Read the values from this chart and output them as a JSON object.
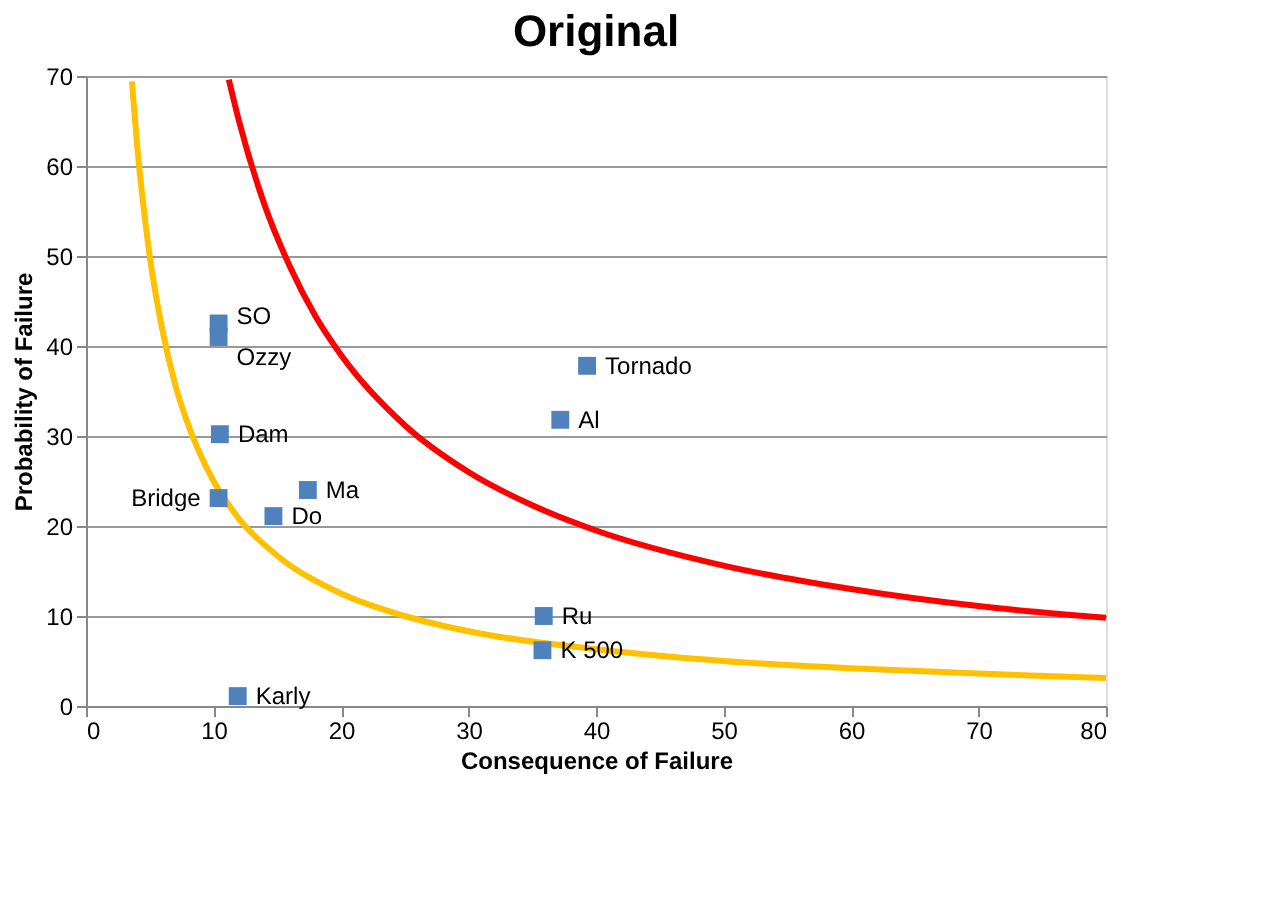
{
  "chart_data": {
    "type": "scatter",
    "title": "Original",
    "xlabel": "Consequence of Failure",
    "ylabel": "Probability of Failure",
    "xlim": [
      0,
      80
    ],
    "ylim": [
      0,
      70
    ],
    "xticks": [
      0,
      10,
      20,
      30,
      40,
      50,
      60,
      70,
      80
    ],
    "yticks": [
      0,
      10,
      20,
      30,
      40,
      50,
      60,
      70
    ],
    "grid": "y",
    "legend": false,
    "series": [
      {
        "type": "line",
        "color": "#ffc000",
        "marker": "none",
        "line_style": "solid",
        "x": [
          3.6,
          4,
          5,
          6,
          7,
          8,
          10,
          12,
          15,
          20,
          25,
          30,
          40,
          50,
          60,
          70,
          80
        ],
        "values": [
          69.4,
          62.5,
          50,
          41.7,
          35.7,
          31.3,
          25,
          20.8,
          16.7,
          12.5,
          10,
          8.3,
          6.3,
          5,
          4.2,
          3.6,
          3.1
        ]
      },
      {
        "type": "line",
        "color": "#ff0000",
        "marker": "none",
        "line_style": "solid",
        "x": [
          11.2,
          12,
          14,
          16,
          18,
          20,
          25,
          30,
          35,
          40,
          50,
          60,
          70,
          80
        ],
        "values": [
          69.6,
          65,
          55.7,
          48.8,
          43.3,
          39,
          31.2,
          26,
          22.3,
          19.5,
          15.6,
          13,
          11.1,
          9.8
        ]
      },
      {
        "type": "scatter",
        "color": "#4f81bd",
        "marker": "square",
        "x": [
          10.4,
          10.4,
          10.5,
          10.4,
          14.7,
          17.4,
          39.3,
          37.2,
          35.9,
          35.8,
          11.9
        ],
        "values": [
          42.5,
          41,
          30.2,
          23.1,
          21.1,
          24,
          37.8,
          31.8,
          10,
          6.2,
          1.1
        ]
      }
    ],
    "annotations": [
      {
        "text": "SO",
        "x": 10.4,
        "y": 42.5
      },
      {
        "text": "Ozzy",
        "x": 10.4,
        "y": 41
      },
      {
        "text": "Dam",
        "x": 10.5,
        "y": 30.2
      },
      {
        "text": "Bridge",
        "x": 10.4,
        "y": 23.1
      },
      {
        "text": "Do",
        "x": 14.7,
        "y": 21.1
      },
      {
        "text": "Ma",
        "x": 17.4,
        "y": 24
      },
      {
        "text": "Tornado",
        "x": 39.3,
        "y": 37.8
      },
      {
        "text": "Al",
        "x": 37.2,
        "y": 31.8
      },
      {
        "text": "Ru",
        "x": 35.9,
        "y": 10
      },
      {
        "text": "K 500",
        "x": 35.8,
        "y": 6.2
      },
      {
        "text": "Karly",
        "x": 11.9,
        "y": 1.1
      }
    ]
  }
}
